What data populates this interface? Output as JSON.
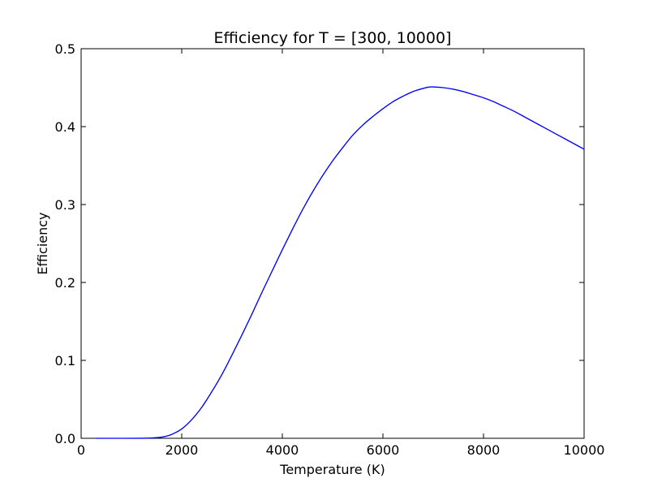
{
  "chart_data": {
    "type": "line",
    "title": "Efficiency for T = [300, 10000]",
    "xlabel": "Temperature (K)",
    "ylabel": "Efficiency",
    "xlim": [
      0,
      10000
    ],
    "ylim": [
      0,
      0.5
    ],
    "x_ticks": [
      0,
      2000,
      4000,
      6000,
      8000,
      10000
    ],
    "y_ticks": [
      0.0,
      0.1,
      0.2,
      0.3,
      0.4,
      0.5
    ],
    "x_tick_labels": [
      "0",
      "2000",
      "4000",
      "6000",
      "8000",
      "10000"
    ],
    "y_tick_labels": [
      "0.0",
      "0.1",
      "0.2",
      "0.3",
      "0.4",
      "0.5"
    ],
    "grid": false,
    "legend": "none",
    "series": [
      {
        "color": "#0000ff",
        "x": [
          300,
          800,
          1200,
          1400,
          1600,
          1800,
          2000,
          2200,
          2400,
          2600,
          2800,
          3000,
          3200,
          3400,
          3600,
          3800,
          4000,
          4200,
          4400,
          4600,
          4800,
          5000,
          5200,
          5400,
          5600,
          5800,
          6000,
          6200,
          6400,
          6600,
          6800,
          6950,
          7200,
          7400,
          7600,
          7800,
          8000,
          8200,
          8400,
          8600,
          8800,
          9000,
          9200,
          9400,
          9600,
          9800,
          10000
        ],
        "y": [
          0.0,
          0.0,
          0.0001,
          0.0005,
          0.0015,
          0.005,
          0.012,
          0.024,
          0.04,
          0.06,
          0.082,
          0.107,
          0.133,
          0.16,
          0.188,
          0.215,
          0.242,
          0.268,
          0.293,
          0.316,
          0.337,
          0.356,
          0.373,
          0.389,
          0.402,
          0.413,
          0.423,
          0.432,
          0.439,
          0.445,
          0.449,
          0.451,
          0.45,
          0.448,
          0.445,
          0.441,
          0.437,
          0.432,
          0.426,
          0.42,
          0.413,
          0.406,
          0.399,
          0.392,
          0.385,
          0.378,
          0.371
        ]
      }
    ]
  }
}
